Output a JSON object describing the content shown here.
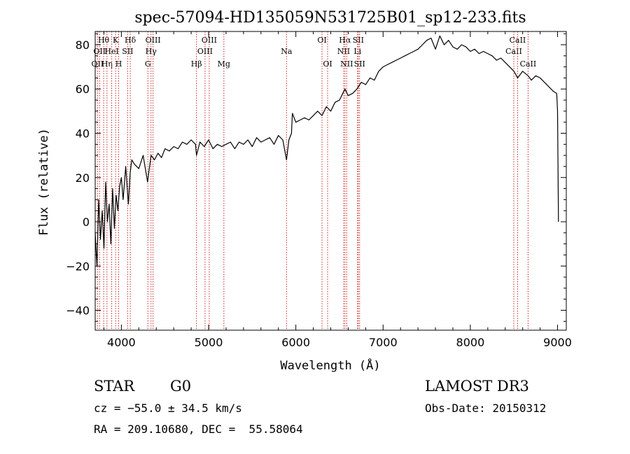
{
  "chart_data": {
    "type": "line",
    "title": "spec-57094-HD135059N531725B01_sp12-233.fits",
    "xlabel": "Wavelength (Å)",
    "ylabel": "Flux (relative)",
    "xlim": [
      3700,
      9100
    ],
    "ylim": [
      -49,
      86
    ],
    "xticks": [
      4000,
      5000,
      6000,
      7000,
      8000,
      9000
    ],
    "yticks": [
      -40,
      -20,
      0,
      20,
      40,
      60,
      80
    ],
    "grid": false,
    "colors": {
      "spectrum": "#000000",
      "line_marker": "#cc2222",
      "axes": "#000000"
    },
    "series": [
      {
        "x": [
          3700,
          3720,
          3740,
          3760,
          3780,
          3800,
          3820,
          3840,
          3860,
          3880,
          3900,
          3920,
          3940,
          3960,
          3980,
          4000,
          4020,
          4050,
          4080,
          4100,
          4120,
          4150,
          4200,
          4250,
          4300,
          4340,
          4380,
          4420,
          4460,
          4500,
          4550,
          4600,
          4650,
          4700,
          4750,
          4800,
          4850,
          4861,
          4900,
          4950,
          5000,
          5050,
          5100,
          5150,
          5200,
          5250,
          5300,
          5350,
          5400,
          5450,
          5500,
          5550,
          5600,
          5650,
          5700,
          5750,
          5800,
          5850,
          5893,
          5920,
          5950,
          5960,
          6000,
          6050,
          6100,
          6150,
          6200,
          6250,
          6300,
          6350,
          6400,
          6450,
          6500,
          6563,
          6600,
          6650,
          6700,
          6750,
          6800,
          6850,
          6900,
          6950,
          7000,
          7050,
          7100,
          7150,
          7200,
          7250,
          7300,
          7350,
          7400,
          7450,
          7500,
          7550,
          7600,
          7650,
          7700,
          7750,
          7800,
          7850,
          7900,
          7950,
          8000,
          8050,
          8100,
          8150,
          8200,
          8250,
          8300,
          8350,
          8400,
          8450,
          8500,
          8542,
          8600,
          8662,
          8700,
          8750,
          8800,
          8850,
          8900,
          8950,
          8990,
          9000,
          9010
        ],
        "y": [
          -5,
          -20,
          10,
          -8,
          5,
          -12,
          18,
          0,
          8,
          -10,
          15,
          -3,
          12,
          5,
          16,
          20,
          10,
          25,
          8,
          22,
          28,
          26,
          24,
          30,
          18,
          30,
          28,
          31,
          29,
          33,
          32,
          34,
          33,
          36,
          35,
          37,
          35,
          30,
          36,
          34,
          37,
          33,
          35,
          34,
          35,
          36,
          33,
          36,
          35,
          37,
          34,
          38,
          36,
          37,
          38,
          35,
          39,
          37,
          28,
          37,
          40,
          49,
          45,
          46,
          47,
          46,
          48,
          50,
          48,
          52,
          50,
          54,
          55,
          60,
          57,
          58,
          60,
          63,
          62,
          65,
          64,
          68,
          70,
          71,
          72,
          73,
          74,
          75,
          76,
          77,
          78,
          80,
          82,
          83,
          78,
          84,
          80,
          82,
          79,
          78,
          80,
          79,
          77,
          78,
          76,
          77,
          76,
          75,
          73,
          74,
          72,
          70,
          68,
          65,
          68,
          66,
          64,
          66,
          65,
          63,
          61,
          59,
          58,
          50,
          0
        ]
      }
    ],
    "line_markers": [
      {
        "x": 3727,
        "label": "OII",
        "row": 3
      },
      {
        "x": 3750,
        "label": "OII",
        "row": 2
      },
      {
        "x": 3797,
        "label": "Hθ",
        "row": 1
      },
      {
        "x": 3835,
        "label": "Hη",
        "row": 3
      },
      {
        "x": 3889,
        "label": "HeI",
        "row": 2
      },
      {
        "x": 3934,
        "label": "K",
        "row": 1
      },
      {
        "x": 3969,
        "label": "H",
        "row": 3
      },
      {
        "x": 4072,
        "label": "SII",
        "row": 2
      },
      {
        "x": 4102,
        "label": "Hδ",
        "row": 1
      },
      {
        "x": 4304,
        "label": "G",
        "row": 3
      },
      {
        "x": 4340,
        "label": "Hγ",
        "row": 2
      },
      {
        "x": 4363,
        "label": "OIII",
        "row": 1
      },
      {
        "x": 4861,
        "label": "Hβ",
        "row": 3
      },
      {
        "x": 4959,
        "label": "OIII",
        "row": 2
      },
      {
        "x": 5007,
        "label": "OIII",
        "row": 1
      },
      {
        "x": 5175,
        "label": "Mg",
        "row": 3
      },
      {
        "x": 5893,
        "label": "Na",
        "row": 2
      },
      {
        "x": 6300,
        "label": "OI",
        "row": 1
      },
      {
        "x": 6364,
        "label": "OI",
        "row": 3
      },
      {
        "x": 6548,
        "label": "NII",
        "row": 2
      },
      {
        "x": 6563,
        "label": "Hα",
        "row": 1
      },
      {
        "x": 6583,
        "label": "NII",
        "row": 3
      },
      {
        "x": 6707,
        "label": "Li",
        "row": 2
      },
      {
        "x": 6716,
        "label": "SII",
        "row": 1
      },
      {
        "x": 6731,
        "label": "SII",
        "row": 3
      },
      {
        "x": 8498,
        "label": "CaII",
        "row": 2
      },
      {
        "x": 8542,
        "label": "CaII",
        "row": 1
      },
      {
        "x": 8662,
        "label": "CaII",
        "row": 3
      }
    ]
  },
  "info": {
    "object_class": "STAR",
    "subclass": "G0",
    "survey": "LAMOST DR3",
    "redshift_line": "cz = −55.0 ± 34.5 km/s",
    "obs_date_line": "Obs-Date: 20150312",
    "coords_line": "RA = 209.10680, DEC =  55.58064"
  }
}
